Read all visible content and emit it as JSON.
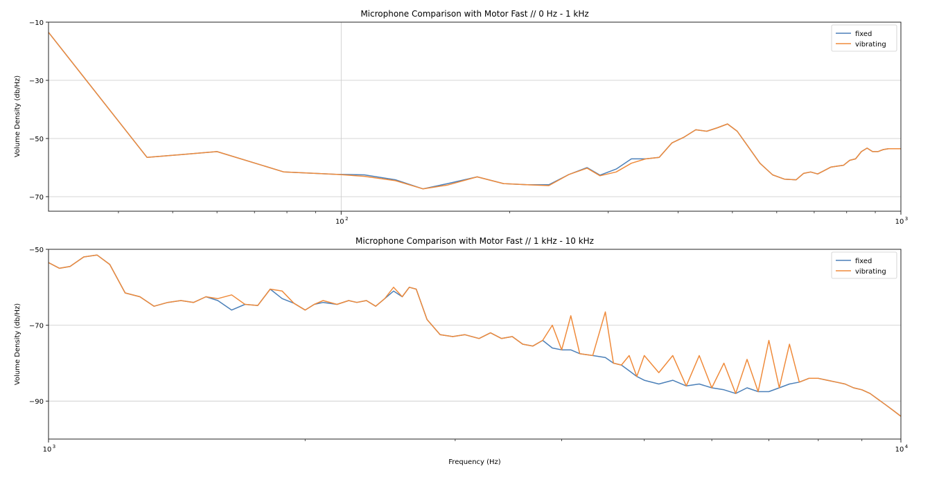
{
  "chart_data": [
    {
      "type": "line",
      "title": "Microphone Comparison with Motor Fast // 0 Hz - 1 kHz",
      "xlabel": "",
      "ylabel": "Volume Density (db/Hz)",
      "xscale": "log",
      "xlim": [
        30,
        1000
      ],
      "ylim": [
        -75,
        -10
      ],
      "yticks": [
        -10,
        -30,
        -50,
        -70
      ],
      "xticks": [
        {
          "value": 100,
          "base": "10",
          "exp": "2"
        },
        {
          "value": 1000,
          "base": "10",
          "exp": "3"
        }
      ],
      "grid": "y",
      "legend": "top-right",
      "series": [
        {
          "name": "fixed",
          "color": "#4a7fb8",
          "x": [
            30,
            45,
            60,
            79,
            98,
            110,
            125,
            140,
            155,
            175,
            195,
            215,
            235,
            255,
            275,
            290,
            310,
            330,
            350,
            370,
            390,
            410,
            430,
            450,
            470,
            490,
            510,
            530,
            560,
            590,
            620,
            650,
            670,
            690,
            710,
            730,
            750,
            770,
            790,
            810,
            830,
            850,
            870,
            890,
            910,
            930,
            950,
            1000
          ],
          "y": [
            -13.5,
            -56.5,
            -54.5,
            -61.5,
            -62.3,
            -62.5,
            -64.2,
            -67.3,
            -65.5,
            -63.2,
            -65.5,
            -65.9,
            -65.9,
            -62.4,
            -60,
            -62.6,
            -60.5,
            -57,
            -57,
            -56.5,
            -51.5,
            -49.5,
            -47,
            -47.5,
            -46.3,
            -45,
            -47.5,
            -52,
            -58.5,
            -62.5,
            -64,
            -64.2,
            -62,
            -61.5,
            -62.2,
            -61,
            -59.8,
            -59.5,
            -59.2,
            -57.5,
            -57,
            -54.5,
            -53.3,
            -54.5,
            -54.5,
            -53.8,
            -53.5,
            -53.5
          ]
        },
        {
          "name": "vibrating",
          "color": "#ef8a3a",
          "x": [
            30,
            45,
            60,
            79,
            98,
            110,
            125,
            140,
            155,
            175,
            195,
            215,
            235,
            255,
            275,
            290,
            310,
            330,
            350,
            370,
            390,
            410,
            430,
            450,
            470,
            490,
            510,
            530,
            560,
            590,
            620,
            650,
            670,
            690,
            710,
            730,
            750,
            770,
            790,
            810,
            830,
            850,
            870,
            890,
            910,
            930,
            950,
            1000
          ],
          "y": [
            -13.5,
            -56.5,
            -54.5,
            -61.5,
            -62.3,
            -63,
            -64.5,
            -67.3,
            -66,
            -63.2,
            -65.5,
            -65.9,
            -66.2,
            -62.4,
            -60.2,
            -62.8,
            -61.5,
            -58.5,
            -57,
            -56.5,
            -51.5,
            -49.5,
            -47,
            -47.5,
            -46.3,
            -45,
            -47.5,
            -52,
            -58.5,
            -62.5,
            -64,
            -64.2,
            -62,
            -61.5,
            -62.2,
            -61,
            -59.8,
            -59.5,
            -59.2,
            -57.5,
            -57,
            -54.5,
            -53.3,
            -54.5,
            -54.5,
            -53.8,
            -53.5,
            -53.5
          ]
        }
      ]
    },
    {
      "type": "line",
      "title": "Microphone Comparison with Motor Fast // 1 kHz - 10 kHz",
      "xlabel": "Frequency (Hz)",
      "ylabel": "Volume Density (db/Hz)",
      "xscale": "log",
      "xlim": [
        1000,
        10000
      ],
      "ylim": [
        -100,
        -50
      ],
      "yticks": [
        -50,
        -70,
        -90
      ],
      "xticks": [
        {
          "value": 1000,
          "base": "10",
          "exp": "3"
        },
        {
          "value": 10000,
          "base": "10",
          "exp": "4"
        }
      ],
      "grid": "y",
      "legend": "top-right",
      "series": [
        {
          "name": "fixed",
          "color": "#4a7fb8",
          "x": [
            1000,
            1030,
            1060,
            1100,
            1140,
            1180,
            1230,
            1280,
            1330,
            1380,
            1430,
            1480,
            1530,
            1580,
            1640,
            1700,
            1760,
            1820,
            1880,
            1940,
            2000,
            2050,
            2100,
            2180,
            2250,
            2300,
            2360,
            2420,
            2480,
            2540,
            2600,
            2650,
            2700,
            2780,
            2880,
            2980,
            3080,
            3200,
            3300,
            3400,
            3500,
            3600,
            3700,
            3800,
            3900,
            4000,
            4100,
            4200,
            4350,
            4500,
            4600,
            4700,
            4800,
            4900,
            5000,
            5200,
            5400,
            5600,
            5800,
            6000,
            6200,
            6400,
            6600,
            6800,
            7000,
            7200,
            7400,
            7600,
            7800,
            8000,
            8200,
            8400,
            8600,
            8800,
            9000,
            9200,
            9400,
            9600,
            9800,
            10000
          ],
          "y": [
            -53.5,
            -55,
            -54.5,
            -52,
            -51.5,
            -54,
            -61.5,
            -62.5,
            -65,
            -64,
            -63.5,
            -64,
            -62.5,
            -63.5,
            -66,
            -64.5,
            -64.8,
            -60.5,
            -63,
            -64.2,
            -66,
            -64.5,
            -64,
            -64.5,
            -63.5,
            -64,
            -63.5,
            -65,
            -63,
            -61,
            -62.5,
            -60,
            -60.5,
            -68.5,
            -72.5,
            -73,
            -72.5,
            -73.5,
            -72,
            -73.5,
            -73,
            -75,
            -75.5,
            -74,
            -76,
            -76.5,
            -76.5,
            -77.5,
            -78,
            -78.5,
            -80,
            -80.5,
            -82,
            -83.5,
            -84.5,
            -85.5,
            -84.5,
            -86,
            -85.5,
            -86.5,
            -87,
            -88,
            -86.5,
            -87.5,
            -87.5,
            -86.5,
            -85.5,
            -85,
            -84,
            -84,
            -84.5,
            -85,
            -85.5,
            -86.5,
            -87,
            -88,
            -89.5,
            -91,
            -92.5,
            -94
          ]
        },
        {
          "name": "vibrating",
          "color": "#ef8a3a",
          "x": [
            1000,
            1030,
            1060,
            1100,
            1140,
            1180,
            1230,
            1280,
            1330,
            1380,
            1430,
            1480,
            1530,
            1580,
            1640,
            1700,
            1760,
            1820,
            1880,
            1940,
            2000,
            2050,
            2100,
            2180,
            2250,
            2300,
            2360,
            2420,
            2480,
            2540,
            2600,
            2650,
            2700,
            2780,
            2880,
            2980,
            3080,
            3200,
            3300,
            3400,
            3500,
            3600,
            3700,
            3800,
            3900,
            4000,
            4100,
            4200,
            4350,
            4500,
            4600,
            4700,
            4800,
            4900,
            5000,
            5200,
            5400,
            5600,
            5800,
            6000,
            6200,
            6400,
            6600,
            6800,
            7000,
            7200,
            7400,
            7600,
            7800,
            8000,
            8200,
            8400,
            8600,
            8800,
            9000,
            9200,
            9400,
            9600,
            9800,
            10000
          ],
          "y": [
            -53.5,
            -55,
            -54.5,
            -52,
            -51.5,
            -54,
            -61.5,
            -62.5,
            -65,
            -64,
            -63.5,
            -64,
            -62.5,
            -63,
            -62,
            -64.5,
            -64.8,
            -60.5,
            -61,
            -64.2,
            -66,
            -64.5,
            -63.5,
            -64.5,
            -63.5,
            -64,
            -63.5,
            -65,
            -63,
            -60,
            -62.5,
            -60,
            -60.5,
            -68.5,
            -72.5,
            -73,
            -72.5,
            -73.5,
            -72,
            -73.5,
            -73,
            -75,
            -75.5,
            -74,
            -70,
            -76.5,
            -67.5,
            -77.5,
            -78,
            -66.5,
            -80,
            -80.5,
            -78,
            -83.5,
            -78,
            -82.5,
            -78,
            -86,
            -78,
            -86.5,
            -80,
            -88,
            -79,
            -87.5,
            -74,
            -86.5,
            -75,
            -85,
            -84,
            -84,
            -84.5,
            -85,
            -85.5,
            -86.5,
            -87,
            -88,
            -89.5,
            -91,
            -92.5,
            -94
          ]
        }
      ]
    }
  ]
}
